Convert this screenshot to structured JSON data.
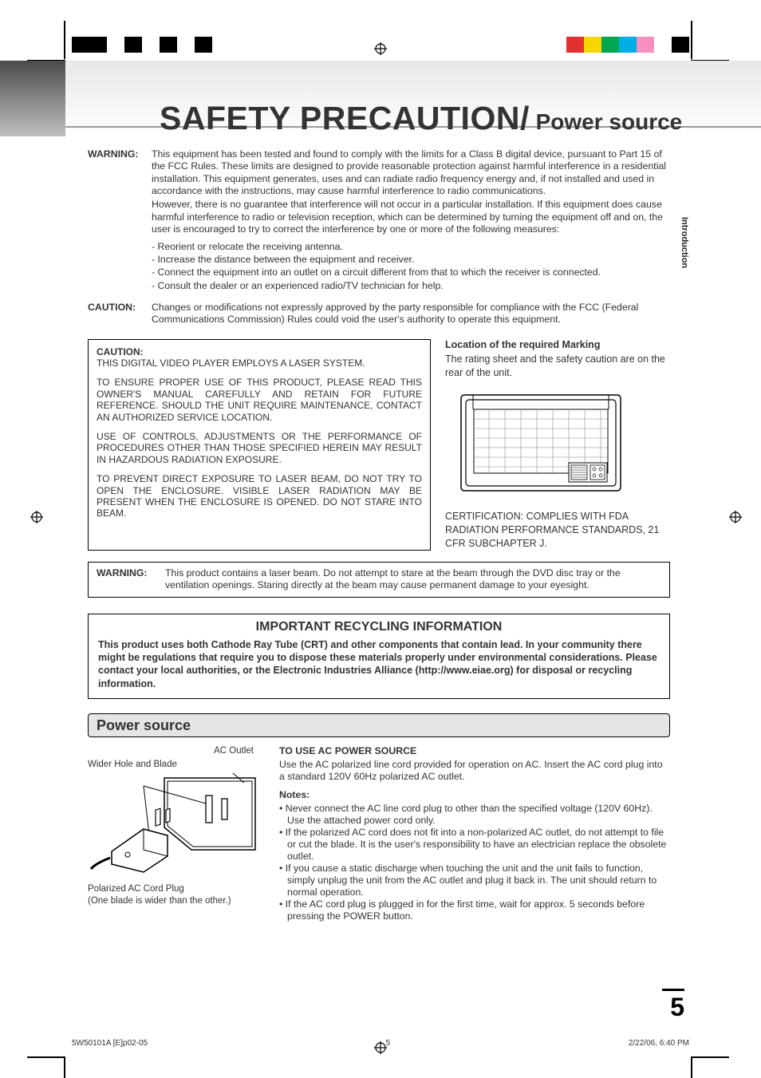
{
  "colors": {
    "text": "#333333",
    "border": "#000000",
    "header_grad_dark": "#4a4a4a",
    "header_grad_light": "#c0c0c0",
    "section_bg": "#e5e5e5",
    "divider": "#9a9a9a",
    "colorbar_left": [
      "#000000",
      "#000000",
      "#ffffff",
      "#000000",
      "#ffffff",
      "#000000",
      "#ffffff",
      "#000000",
      "#ffffff",
      "#ffffff"
    ],
    "colorbar_right": [
      "#e03030",
      "#f7d600",
      "#00a650",
      "#00aee6",
      "#f590c0",
      "#ffffff",
      "#000000"
    ]
  },
  "title": {
    "main": "SAFETY PRECAUTION/",
    "sub": " Power source"
  },
  "side_tab": "Introduction",
  "warning": {
    "label": "WARNING:",
    "p1": "This equipment has been tested and found to comply with the limits for a Class B digital device, pursuant to Part 15 of the FCC Rules. These limits are designed to provide reasonable protection against harmful interference in a residential installation. This equipment generates, uses and can radiate radio frequency energy and, if not installed and used in accordance with the instructions, may cause harmful interference to radio communications.",
    "p2": "However, there is no guarantee that interference will not occur in a particular installation. If this equipment does cause harmful interference to radio or television reception, which can be determined by turning the equipment off and on, the user is encouraged to try to correct the interference by one or more of the following measures:",
    "measures": [
      "Reorient or relocate the receiving antenna.",
      "Increase the distance between the equipment and receiver.",
      "Connect the equipment into an outlet on a circuit different from that to which the receiver is connected.",
      "Consult the dealer or an experienced radio/TV technician for help."
    ]
  },
  "caution_top": {
    "label": "CAUTION:",
    "body": "Changes or modifications not expressly approved by the party responsible for compliance with the FCC (Federal Communications Commission) Rules could void the user's authority to operate this equipment."
  },
  "laser_box": {
    "title": "CAUTION:",
    "p1": "THIS DIGITAL VIDEO PLAYER EMPLOYS A LASER SYSTEM.",
    "p2": "TO ENSURE PROPER USE OF THIS PRODUCT, PLEASE READ THIS OWNER'S MANUAL CAREFULLY AND RETAIN FOR FUTURE REFERENCE. SHOULD THE UNIT REQUIRE MAINTENANCE, CONTACT AN AUTHORIZED SERVICE LOCATION.",
    "p3": "USE OF CONTROLS, ADJUSTMENTS OR THE PERFORMANCE OF PROCEDURES OTHER THAN THOSE SPECIFIED HEREIN MAY RESULT IN HAZARDOUS RADIATION EXPOSURE.",
    "p4": "TO PREVENT DIRECT EXPOSURE TO LASER BEAM, DO NOT TRY TO OPEN THE ENCLOSURE. VISIBLE LASER RADIATION MAY BE PRESENT WHEN THE ENCLOSURE IS OPENED. DO NOT STARE INTO BEAM."
  },
  "marking": {
    "head": "Location of the required Marking",
    "text": "The rating sheet and the safety caution are on the rear of the unit.",
    "cert": "CERTIFICATION: COMPLIES WITH FDA RADIATION PERFORMANCE STANDARDS, 21 CFR SUBCHAPTER J."
  },
  "laser_warn": {
    "label": "WARNING:",
    "body": "This product contains a laser beam. Do not attempt to stare at the beam through the DVD disc tray or the ventilation openings. Staring directly at the beam may cause permanent damage to your eyesight."
  },
  "recycle": {
    "title": "IMPORTANT RECYCLING INFORMATION",
    "body": "This product uses both Cathode Ray Tube (CRT) and other components that contain lead. In your community there might be regulations that require you to dispose these materials properly under environmental considerations. Please contact your local authorities, or the Electronic Industries Alliance (http://www.eiae.org) for disposal or recycling information."
  },
  "power": {
    "title": "Power source",
    "ac_outlet": "AC Outlet",
    "wider": "Wider Hole and Blade",
    "plug_cap1": "Polarized AC Cord Plug",
    "plug_cap2": "(One blade is wider than the other.)",
    "use_head": "TO USE AC POWER SOURCE",
    "use_body": "Use the AC polarized line cord provided for operation on AC. Insert the AC cord plug into a standard 120V 60Hz polarized AC outlet.",
    "notes_head": "Notes:",
    "notes": [
      "Never connect the AC line cord plug to other than the specified voltage (120V 60Hz). Use the attached power cord only.",
      "If the polarized AC cord does not fit into a non-polarized AC outlet, do not attempt to file or cut the blade. It is the user's responsibility to have an electrician replace the obsolete outlet.",
      "If you cause a static discharge when touching the unit and the unit fails to function, simply unplug the unit from the AC outlet and plug it back in. The unit should return to normal operation.",
      "If the AC cord plug is plugged in for the first time, wait for approx. 5 seconds before pressing the POWER button."
    ]
  },
  "page_number": "5",
  "footer": {
    "left": "5W50101A [E]p02-05",
    "mid": "5",
    "right": "2/22/06, 6:40 PM"
  }
}
